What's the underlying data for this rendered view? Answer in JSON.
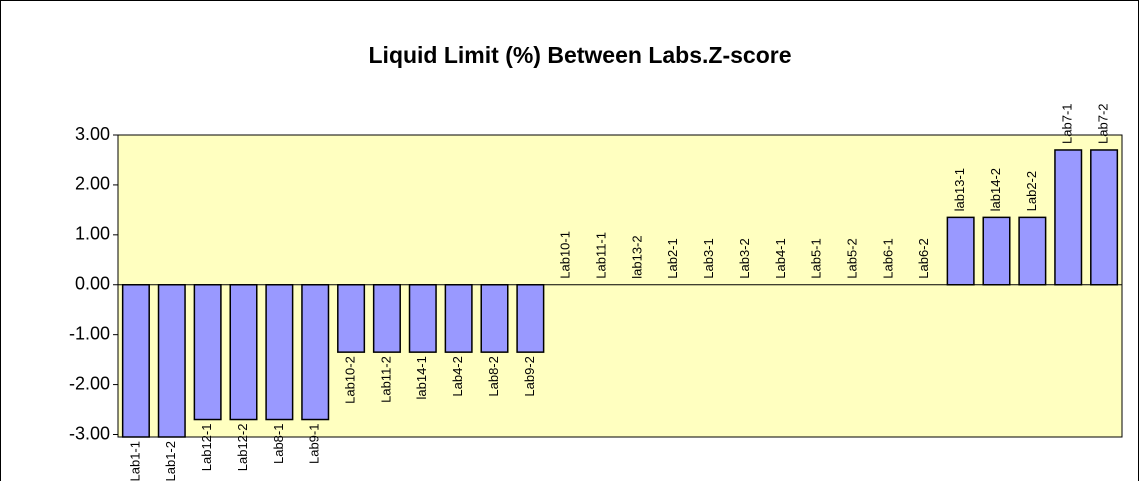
{
  "chart_data": {
    "type": "bar",
    "title": "Liquid Limit (%) Between Labs.Z-score",
    "categories": [
      "Lab1-1",
      "Lab1-2",
      "Lab12-1",
      "Lab12-2",
      "Lab8-1",
      "Lab9-1",
      "Lab10-2",
      "Lab11-2",
      "lab14-1",
      "Lab4-2",
      "Lab8-2",
      "Lab9-2",
      "Lab10-1",
      "Lab11-1",
      "lab13-2",
      "Lab2-1",
      "Lab3-1",
      "Lab3-2",
      "Lab4-1",
      "Lab5-1",
      "Lab5-2",
      "Lab6-1",
      "Lab6-2",
      "lab13-1",
      "lab14-2",
      "Lab2-2",
      "Lab7-1",
      "Lab7-2"
    ],
    "values": [
      -3.05,
      -3.05,
      -2.7,
      -2.7,
      -2.7,
      -2.7,
      -1.35,
      -1.35,
      -1.35,
      -1.35,
      -1.35,
      -1.35,
      0,
      0,
      0,
      0,
      0,
      0,
      0,
      0,
      0,
      0,
      0,
      1.35,
      1.35,
      1.35,
      2.7,
      2.7
    ],
    "color": "#9999ff",
    "ylim": [
      -3.05,
      3
    ],
    "yticks": [
      {
        "value": 3,
        "label": "3.00"
      },
      {
        "value": 2,
        "label": "2.00"
      },
      {
        "value": 1,
        "label": "1.00"
      },
      {
        "value": 0,
        "label": "0.00"
      },
      {
        "value": -1,
        "label": "-1.00"
      },
      {
        "value": -2,
        "label": "-2.00"
      },
      {
        "value": -3,
        "label": "-3.00"
      }
    ],
    "grid": false
  }
}
